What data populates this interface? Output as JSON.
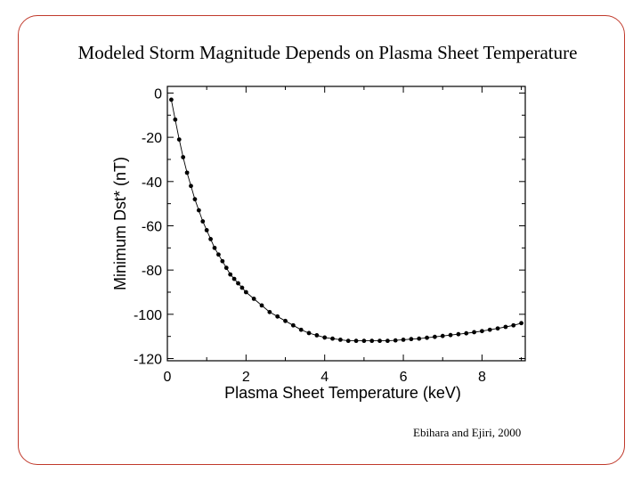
{
  "slide": {
    "title": "Modeled Storm Magnitude Depends on Plasma Sheet Temperature",
    "citation": "Ebihara and Ejiri, 2000"
  },
  "chart_data": {
    "type": "line",
    "title": "",
    "xlabel": "Plasma Sheet Temperature (keV)",
    "ylabel": "Minimum Dst* (nT)",
    "xlim": [
      0,
      9.1
    ],
    "ylim": [
      -121,
      3
    ],
    "xticks": [
      0,
      2,
      4,
      6,
      8
    ],
    "yticks": [
      0,
      -20,
      -40,
      -60,
      -80,
      -100,
      -120
    ],
    "grid": false,
    "legend": "none",
    "markers": true,
    "line_color": "#000000",
    "series": [
      {
        "x": [
          0.1,
          0.2,
          0.3,
          0.4,
          0.5,
          0.6,
          0.7,
          0.8,
          0.9,
          1.0,
          1.1,
          1.2,
          1.3,
          1.4,
          1.5,
          1.6,
          1.7,
          1.8,
          1.9,
          2.0,
          2.2,
          2.4,
          2.6,
          2.8,
          3.0,
          3.2,
          3.4,
          3.6,
          3.8,
          4.0,
          4.2,
          4.4,
          4.6,
          4.8,
          5.0,
          5.2,
          5.4,
          5.6,
          5.8,
          6.0,
          6.2,
          6.4,
          6.6,
          6.8,
          7.0,
          7.2,
          7.4,
          7.6,
          7.8,
          8.0,
          8.2,
          8.4,
          8.6,
          8.8,
          9.0
        ],
        "y": [
          -3,
          -12,
          -21,
          -29,
          -36,
          -42,
          -48,
          -53,
          -58,
          -62,
          -66,
          -70,
          -73,
          -76,
          -79,
          -82,
          -84,
          -86,
          -88,
          -90,
          -93,
          -96,
          -99,
          -101,
          -103,
          -105,
          -107,
          -108.5,
          -109.5,
          -110.5,
          -111,
          -111.5,
          -112,
          -112,
          -112,
          -112,
          -112,
          -112,
          -111.8,
          -111.5,
          -111.2,
          -111,
          -110.6,
          -110.2,
          -109.8,
          -109.4,
          -109,
          -108.6,
          -108.1,
          -107.6,
          -107,
          -106.4,
          -105.7,
          -105,
          -104
        ]
      }
    ]
  }
}
